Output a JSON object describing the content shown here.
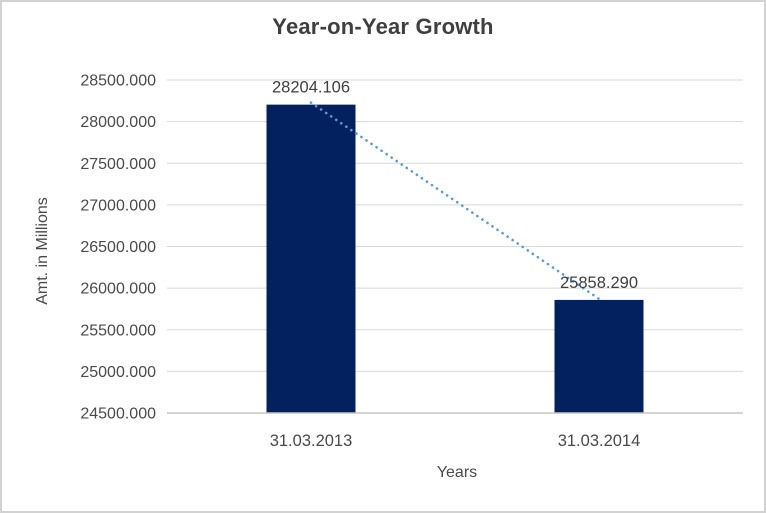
{
  "chart_data": {
    "type": "bar",
    "title": "Year-on-Year Growth",
    "xlabel": "Years",
    "ylabel": "Amt. in Millions",
    "categories": [
      "31.03.2013",
      "31.03.2014"
    ],
    "values": [
      28204.106,
      25858.29
    ],
    "data_labels": [
      "28204.106",
      "25858.290"
    ],
    "ylim": [
      24500,
      28500
    ],
    "ytick_step": 500,
    "ytick_labels": [
      "24500.000",
      "25000.000",
      "25500.000",
      "26000.000",
      "26500.000",
      "27000.000",
      "27500.000",
      "28000.000",
      "28500.000"
    ],
    "grid": true,
    "legend_position": "none",
    "trendline": {
      "style": "dotted",
      "points": "bar-tops"
    },
    "colors": {
      "bar_fill": "#03215E",
      "trendline": "#5B9BD5",
      "gridline": "#D9D9D9",
      "axis_line": "#C6C6C6",
      "title_text": "#3F3F3F",
      "tick_text": "#4A4A4A",
      "data_label_text": "#404040",
      "frame_border": "#D2D2D2",
      "background": "#FFFFFF"
    }
  }
}
